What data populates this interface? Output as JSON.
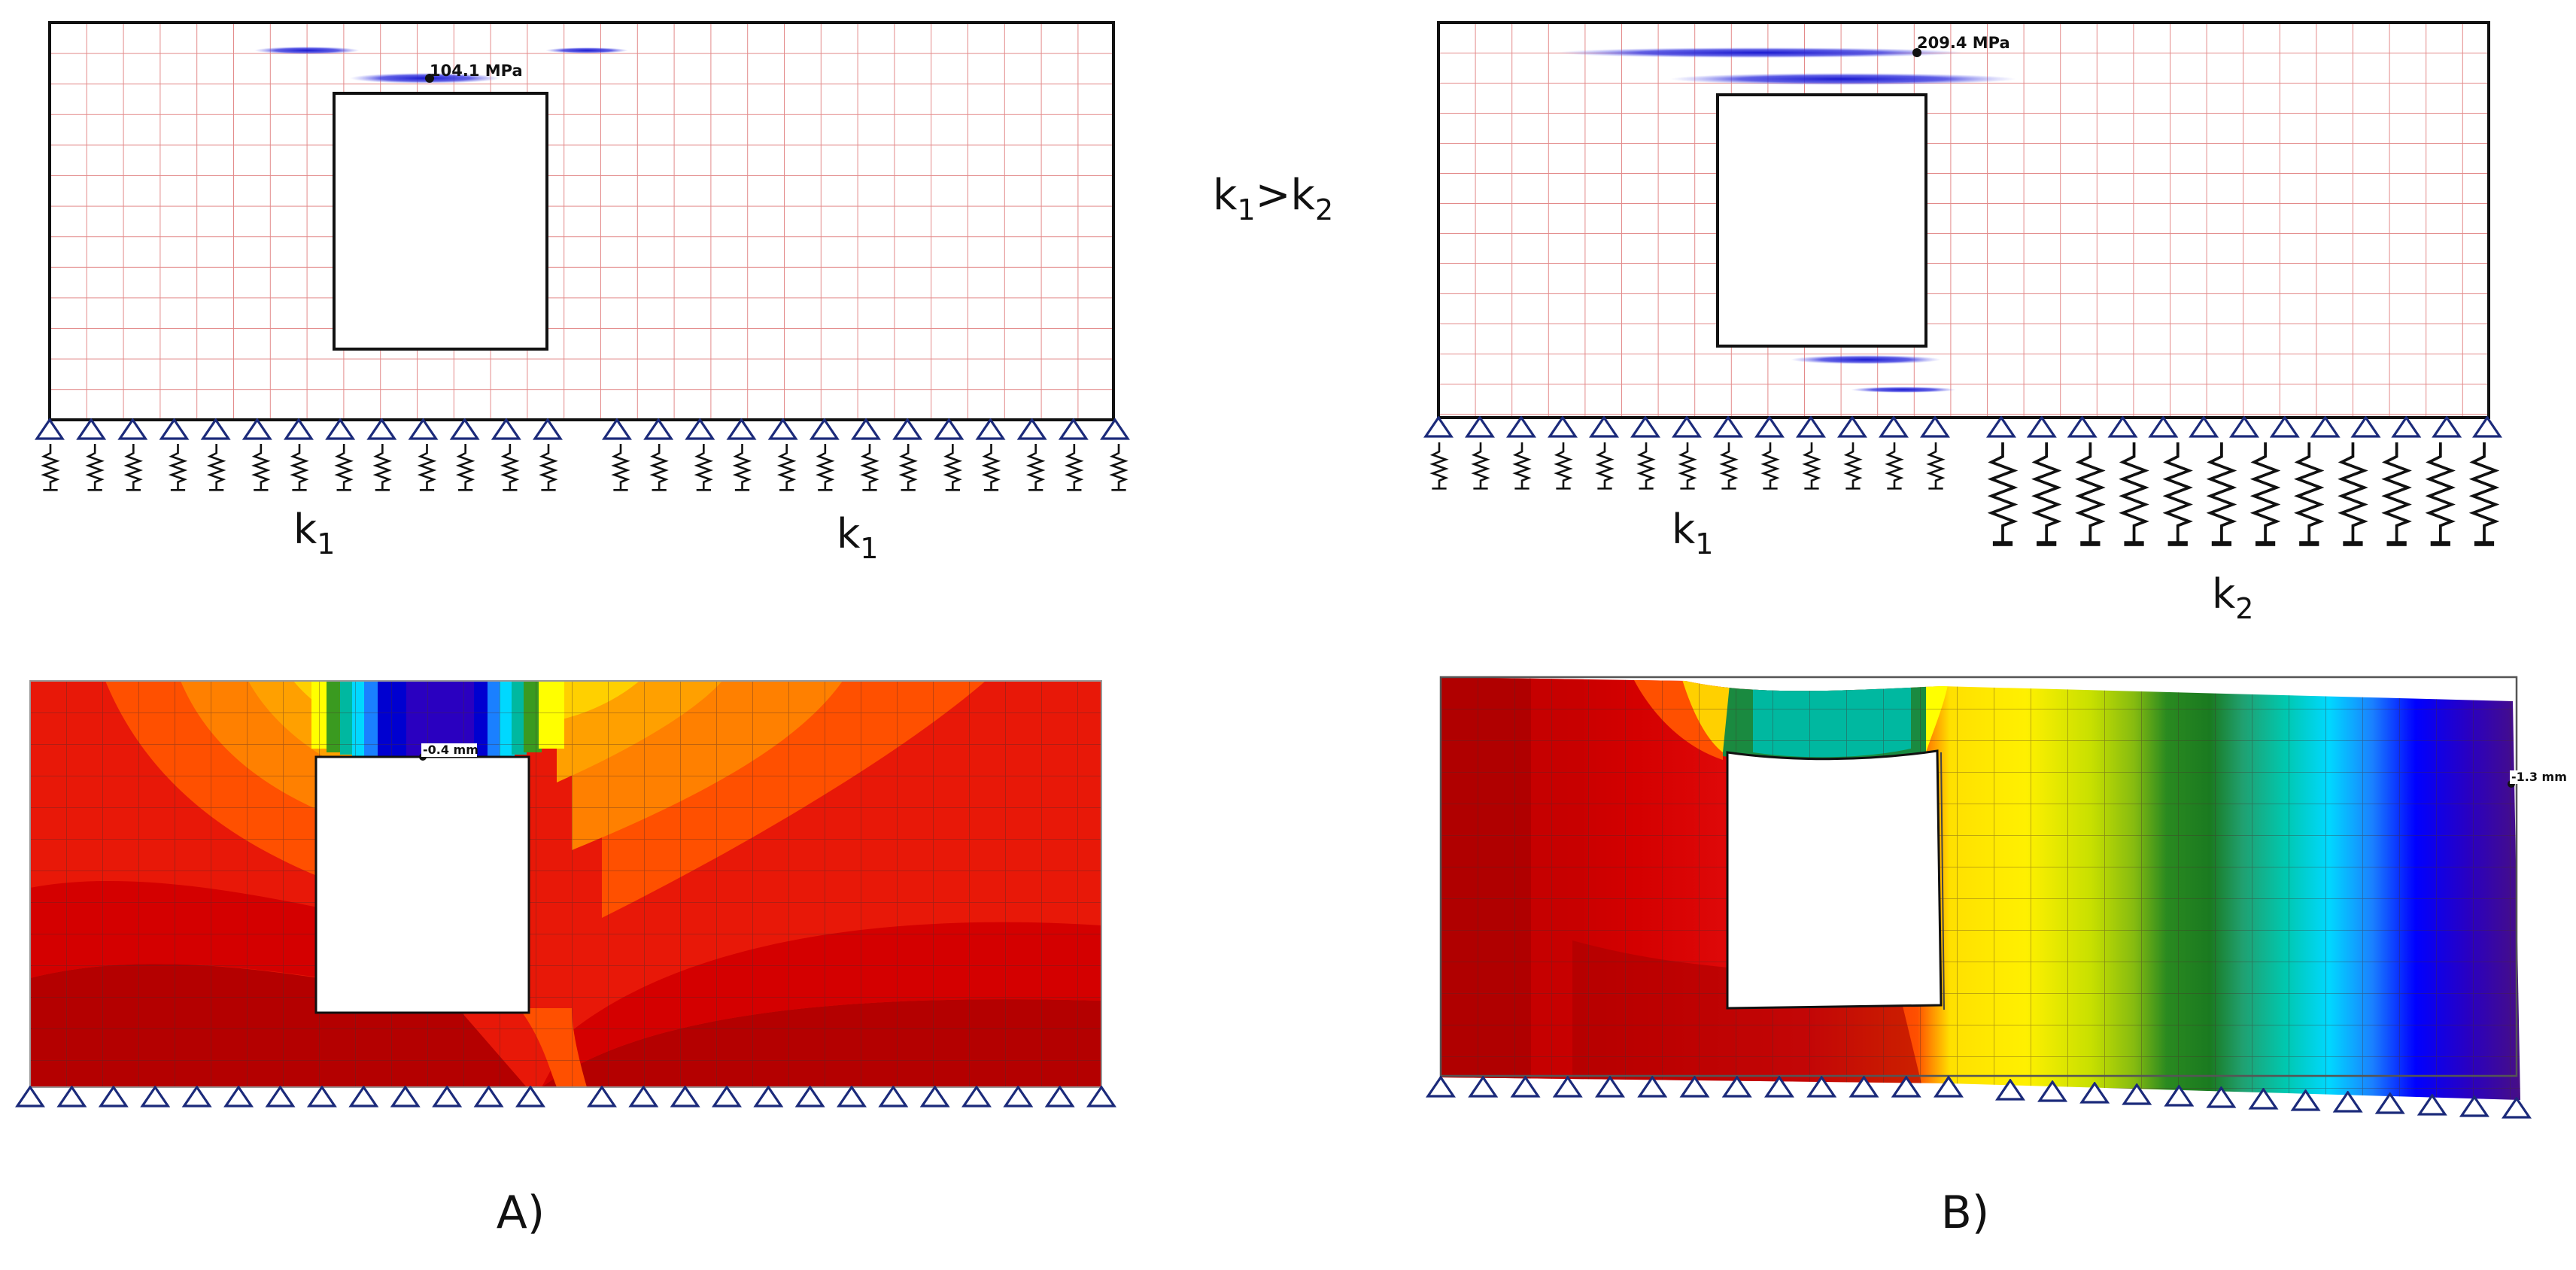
{
  "relation": {
    "lhs": "k",
    "lhs_sub": "1",
    "op": ">",
    "rhs": "k",
    "rhs_sub": "2"
  },
  "panel_a": {
    "label": "A)",
    "stress_readout": "104.1 MPa",
    "displacement_readout": "-0.4 mm",
    "springs_left": {
      "symbol": "k",
      "sub": "1"
    },
    "springs_right": {
      "symbol": "k",
      "sub": "1"
    }
  },
  "panel_b": {
    "label": "B)",
    "stress_readout": "209.4 MPa",
    "displacement_readout": "-1.3 mm",
    "springs_left": {
      "symbol": "k",
      "sub": "1"
    },
    "springs_right": {
      "symbol": "k",
      "sub": "2"
    }
  },
  "colors": {
    "mesh_line": "#e38a8a",
    "outline": "#111111",
    "support": "#1b2a7a",
    "stress_highlight": "#2a2ad0",
    "contour_scale": [
      "#aa0000",
      "#d80000",
      "#f03000",
      "#ff6a00",
      "#ffa000",
      "#ffd000",
      "#ffff00",
      "#c8e000",
      "#3a9a20",
      "#1a7a20",
      "#00b8a0",
      "#00d8ff",
      "#1a80ff",
      "#0000ff",
      "#2a00c0",
      "#4a1080"
    ]
  }
}
